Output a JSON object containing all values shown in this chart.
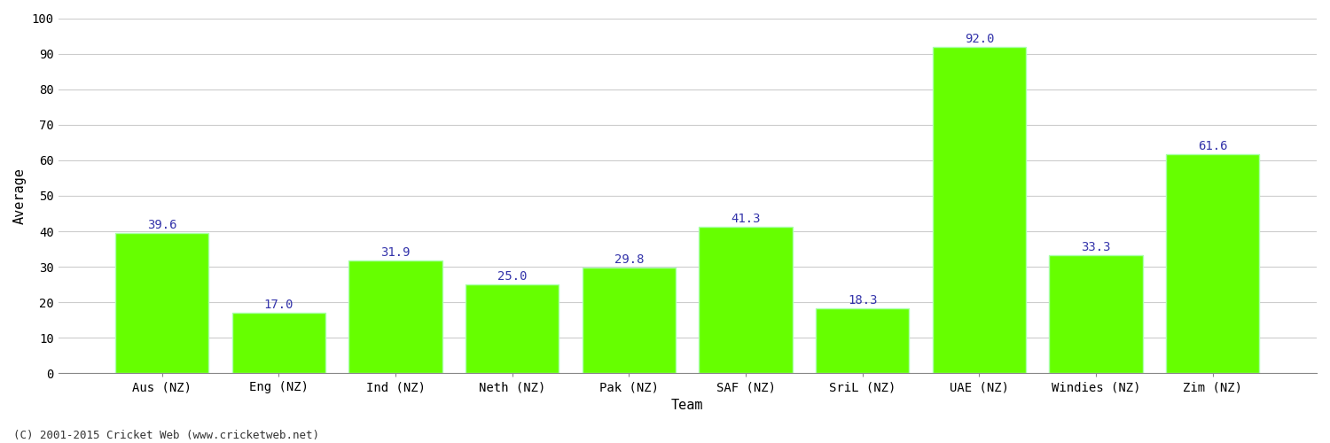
{
  "categories": [
    "Aus (NZ)",
    "Eng (NZ)",
    "Ind (NZ)",
    "Neth (NZ)",
    "Pak (NZ)",
    "SAF (NZ)",
    "SriL (NZ)",
    "UAE (NZ)",
    "Windies (NZ)",
    "Zim (NZ)"
  ],
  "values": [
    39.6,
    17.0,
    31.9,
    25.0,
    29.8,
    41.3,
    18.3,
    92.0,
    33.3,
    61.6
  ],
  "bar_color": "#66ff00",
  "bar_edge_color": "#aaffaa",
  "value_color": "#3333aa",
  "xlabel": "Team",
  "ylabel": "Average",
  "ylim": [
    0,
    100
  ],
  "yticks": [
    0,
    10,
    20,
    30,
    40,
    50,
    60,
    70,
    80,
    90,
    100
  ],
  "grid_color": "#cccccc",
  "background_color": "#ffffff",
  "footnote": "(C) 2001-2015 Cricket Web (www.cricketweb.net)",
  "value_fontsize": 10,
  "axis_label_fontsize": 11,
  "tick_fontsize": 10,
  "footnote_fontsize": 9,
  "bar_width": 0.8
}
